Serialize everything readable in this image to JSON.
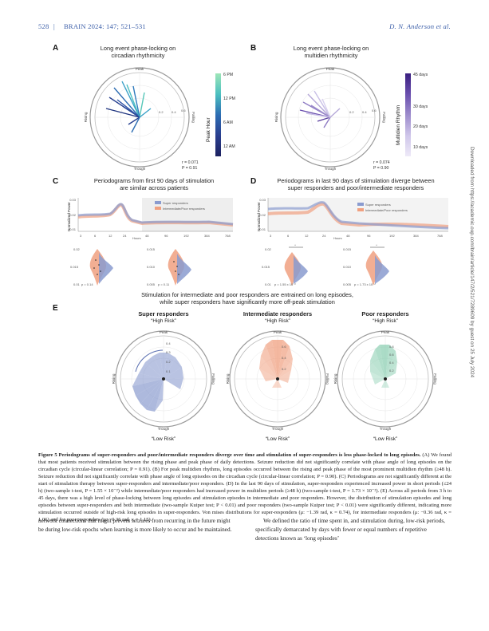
{
  "header": {
    "page": "528",
    "journal": "BRAIN 2024: 147; 521–531",
    "author": "D. N. Anderson et al."
  },
  "sidebar": {
    "text": "Downloaded from https://academic.oup.com/brain/article/147/2/521/7289609 by guest on 25 July 2024"
  },
  "figure": {
    "panelA": {
      "label": "A",
      "title_line1": "Long event phase-locking on",
      "title_line2": "circadian rhythmicity",
      "phase_labels": {
        "top": "Peak",
        "bottom": "Trough",
        "left": "Rising",
        "right": "Falling"
      },
      "radial_ticks": [
        "0.2",
        "0.4",
        "0.6"
      ],
      "colorbar_title": "Peak Hour",
      "colorbar_ticks": [
        "6 PM",
        "12 PM",
        "6 AM",
        "12 AM"
      ],
      "stat_r": "r = 0.071",
      "stat_p": "P = 0.91"
    },
    "panelB": {
      "label": "B",
      "title_line1": "Long event phase-locking on",
      "title_line2": "multidien rhythmicity",
      "phase_labels": {
        "top": "Peak",
        "bottom": "Trough",
        "left": "Rising",
        "right": "Falling"
      },
      "radial_ticks": [
        "0.2",
        "0.4",
        "0.6"
      ],
      "colorbar_title": "Multidien Rhythm",
      "colorbar_ticks": [
        "45 days",
        "30 days",
        "20 days",
        "10 days"
      ],
      "stat_r": "r = 0.074",
      "stat_p": "P = 0.90"
    },
    "panelC": {
      "label": "C",
      "title_line1": "Periodograms from first 90 days of stimulation",
      "title_line2": "are similar across patients",
      "ylabel": "Normalized Power",
      "yticks": [
        "0.03",
        "0.02",
        "0.01"
      ],
      "xticks": [
        "3",
        "6",
        "12",
        "24",
        "48",
        "96",
        "192",
        "384",
        "768"
      ],
      "xlabel": "Hours",
      "legend": [
        "Super responders",
        "Intermediate/Poor responders"
      ],
      "violin_left_p": "p = 0.14",
      "violin_right_p": "p = 0.11",
      "violin_left_yticks": [
        "0.02",
        "0.015",
        "0.01"
      ],
      "violin_right_yticks": [
        "0.015",
        "0.010",
        "0.005"
      ]
    },
    "panelD": {
      "label": "D",
      "title_line1": "Periodograms in last 90 days of stimulation diverge between",
      "title_line2": "super responders and poor/intermediate responders",
      "ylabel": "Normalized Power",
      "yticks": [
        "0.03",
        "0.02",
        "0.01"
      ],
      "xticks": [
        "3",
        "6",
        "12",
        "24",
        "48",
        "96",
        "192",
        "384",
        "768"
      ],
      "xlabel": "Hours",
      "legend": [
        "Super responders",
        "Intermediate/Poor responders"
      ],
      "violin_left_p": "p = 1.55 x 10⁻²",
      "violin_right_p": "p = 1.73 x 10⁻²",
      "violin_left_yticks": [
        "0.02",
        "0.015",
        "0.01"
      ],
      "violin_right_yticks": [
        "0.015",
        "0.010",
        "0.005"
      ]
    },
    "middle_statement_line1": "Stimulation for intermediate and poor responders are entrained on long episodes,",
    "middle_statement_line2": "while super responders have significantly more off-peak stimulation",
    "panelE": {
      "label": "E",
      "groups": [
        {
          "title": "Super responders",
          "top": "“High Risk”",
          "bottom": "“Low Risk”",
          "ticks": [
            "0.4",
            "0.3",
            "0.2",
            "0.1"
          ],
          "color": "#8a9bcf"
        },
        {
          "title": "Intermediate responders",
          "top": "“High Risk”",
          "bottom": "“Low Risk”",
          "ticks": [
            "0.6",
            "0.4",
            "0.2"
          ],
          "color": "#f0a080"
        },
        {
          "title": "Poor responders",
          "top": "“High Risk”",
          "bottom": "“Low Risk”",
          "ticks": [
            "0.8",
            "0.6",
            "0.4",
            "0.2"
          ],
          "color": "#8fd0b4"
        }
      ],
      "phase_labels": {
        "top": "Peak",
        "bottom": "Trough",
        "left": "Rising",
        "right": "Falling"
      }
    }
  },
  "caption": {
    "title": "Figure 5  Periodograms of super-responders and poor/intermediate responders diverge over time and stimulation of super-responders is less phase-locked to long episodes.",
    "body": " (A) We found that most patients received stimulation between the rising phase and peak phase of daily detections. Seizure reduction did not significantly correlate with phase angle of long episodes on the circadian cycle (circular-linear correlation; P = 0.91). (B) For peak multidien rhythms, long episodes occurred between the rising and peak phase of the most prominent multidien rhythm (≥48 h). Seizure reduction did not significantly correlate with phase angle of long episodes on the circadian cycle (circular-linear correlation; P = 0.90). (C) Periodograms are not significantly different at the start of stimulation therapy between super-responders and intermediate/poor responders. (D) In the last 90 days of stimulation, super-responders experienced increased power in short periods (≤24 h) (two-sample t-test, P = 1.55 × 10⁻²) while intermediate/poor responders had increased power in multidien periods (≥48 h) (two-sample t-test, P = 1.73 × 10⁻²). (E) Across all periods from 3 h to 45 days, there was a high level of phase-locking between long episodes and stimulation episodes in intermediate and poor responders. However, the distribution of stimulation episodes and long episodes between super-responders and both intermediate (two-sample Kuiper test; P < 0.01) and poor responders (two-sample Kuiper test; P < 0.01) were significantly different, indicating more stimulation occurred outside of high-risk long episodes in super-responders. Von mises distributions for super-responders (μ: −1.39 rad, κ = 0.74), for intermediate responders (μ: −0.36 rad, κ = 1.06) and for poor responders (μ: −0.36 rad, κ = 1.15)."
  },
  "body": {
    "left": "network connections that might prevent seizures from recurring in the future might be during low-risk epochs when learning is more likely to occur and be maintained.",
    "right": "We defined the ratio of time spent in, and stimulation during, low-risk periods, specifically demarcated by days with fewer or equal numbers of repetitive detections known as ‘long episodes’"
  },
  "colors": {
    "header_blue": "#3b5ea8",
    "super": "#8a9bcf",
    "intermediate": "#f0a080",
    "poor": "#8fd0b4"
  }
}
